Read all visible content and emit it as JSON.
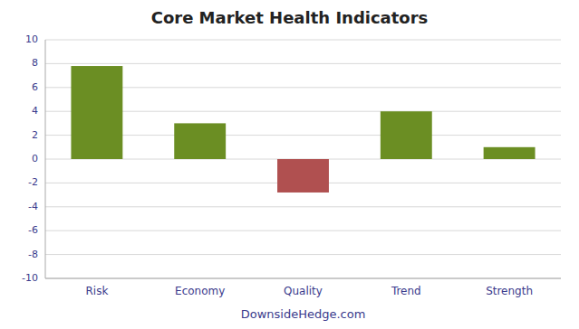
{
  "chart_data": {
    "type": "bar",
    "title": "Core Market Health Indicators",
    "categories": [
      "Risk",
      "Economy",
      "Quality",
      "Trend",
      "Strength"
    ],
    "values": [
      7.8,
      3.0,
      -2.8,
      4.0,
      1.0
    ],
    "colors": [
      "#6b8e23",
      "#6b8e23",
      "#b05050",
      "#6b8e23",
      "#6b8e23"
    ],
    "ylim": [
      -10,
      10
    ],
    "yticks": [
      -10,
      -8,
      -6,
      -4,
      -2,
      0,
      2,
      4,
      6,
      8,
      10
    ],
    "xlabel": "DownsideHedge.com",
    "grid": true
  }
}
